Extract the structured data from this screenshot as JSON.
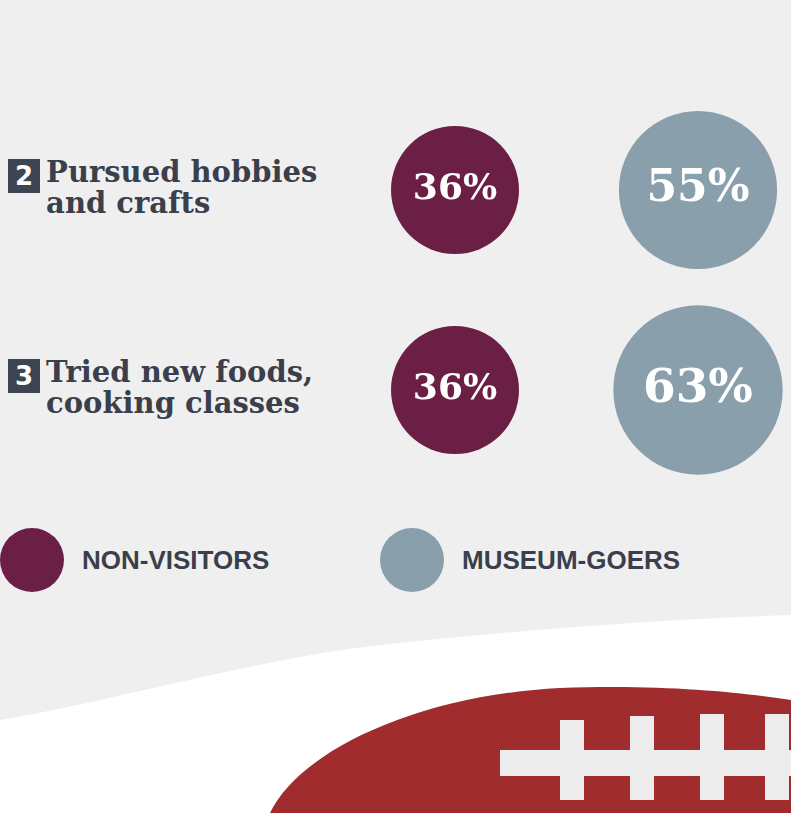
{
  "chart_data": {
    "type": "bubble",
    "categories": [
      "Pursued hobbies and crafts",
      "Tried new foods, cooking classes"
    ],
    "category_numbers": [
      "2",
      "3"
    ],
    "series": [
      {
        "name": "NON-VISITORS",
        "color": "#6b1f45",
        "values": [
          36,
          36
        ],
        "value_labels": [
          "36%",
          "36%"
        ]
      },
      {
        "name": "MUSEUM-GOERS",
        "color": "#8a9fac",
        "values": [
          55,
          63
        ],
        "value_labels": [
          "55%",
          "63%"
        ]
      }
    ],
    "data_labels": true,
    "legend": "bottom",
    "tick_labels": false,
    "grid": false
  }
}
